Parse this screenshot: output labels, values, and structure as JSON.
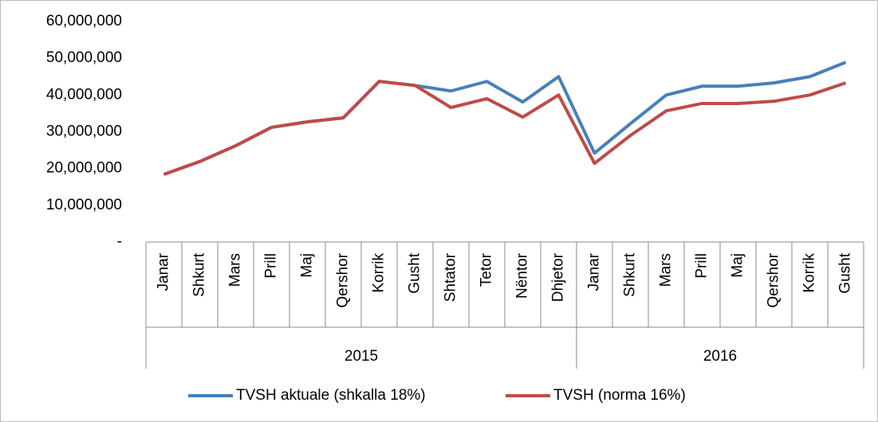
{
  "chart_data": {
    "type": "line",
    "categories": [
      "Janar",
      "Shkurt",
      "Mars",
      "Prill",
      "Maj",
      "Qershor",
      "Korrik",
      "Gusht",
      "Shtator",
      "Tetor",
      "Nëntor",
      "Dhjetor",
      "Janar",
      "Shkurt",
      "Mars",
      "Prill",
      "Maj",
      "Qershor",
      "Korrik",
      "Gusht"
    ],
    "x_groups": [
      {
        "label": "2015",
        "span": 12
      },
      {
        "label": "2016",
        "span": 8
      }
    ],
    "series": [
      {
        "name": "TVSH aktuale (shkalla 18%)",
        "color": "#4a7ebb",
        "values": [
          18400000,
          21900000,
          26200000,
          31200000,
          32700000,
          33800000,
          43700000,
          42600000,
          41100000,
          43700000,
          38100000,
          45000000,
          24200000,
          32200000,
          40000000,
          42400000,
          42400000,
          43300000,
          45000000,
          48900000
        ]
      },
      {
        "name": "TVSH (norma 16%)",
        "color": "#be4b48",
        "values": [
          18400000,
          21900000,
          26200000,
          31200000,
          32700000,
          33800000,
          43700000,
          42600000,
          36600000,
          39000000,
          34000000,
          40000000,
          21400000,
          29000000,
          35700000,
          37700000,
          37700000,
          38300000,
          40000000,
          43300000
        ]
      }
    ],
    "ylim": [
      0,
      60000000
    ],
    "yticks": [
      {
        "value": 0,
        "label": "-"
      },
      {
        "value": 10000000,
        "label": "10,000,000"
      },
      {
        "value": 20000000,
        "label": "20,000,000"
      },
      {
        "value": 30000000,
        "label": "30,000,000"
      },
      {
        "value": 40000000,
        "label": "40,000,000"
      },
      {
        "value": 50000000,
        "label": "50,000,000"
      },
      {
        "value": 60000000,
        "label": "60,000,000"
      }
    ],
    "grid": false,
    "legend": "bottom"
  }
}
